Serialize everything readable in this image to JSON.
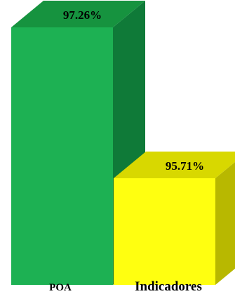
{
  "chart_data": {
    "type": "bar",
    "style": "3d",
    "categories": [
      "POA",
      "Indicadores"
    ],
    "values": [
      97.26,
      95.71
    ],
    "data_labels": [
      "97.26%",
      "95.71%"
    ],
    "colors": {
      "POA": {
        "front": "#1DB153",
        "side": "#0F7A38",
        "top": "#16933F"
      },
      "Indicadores": {
        "front": "#FFFF10",
        "side": "#B8B800",
        "top": "#D8D800"
      }
    },
    "grid": false,
    "legend": "none"
  }
}
